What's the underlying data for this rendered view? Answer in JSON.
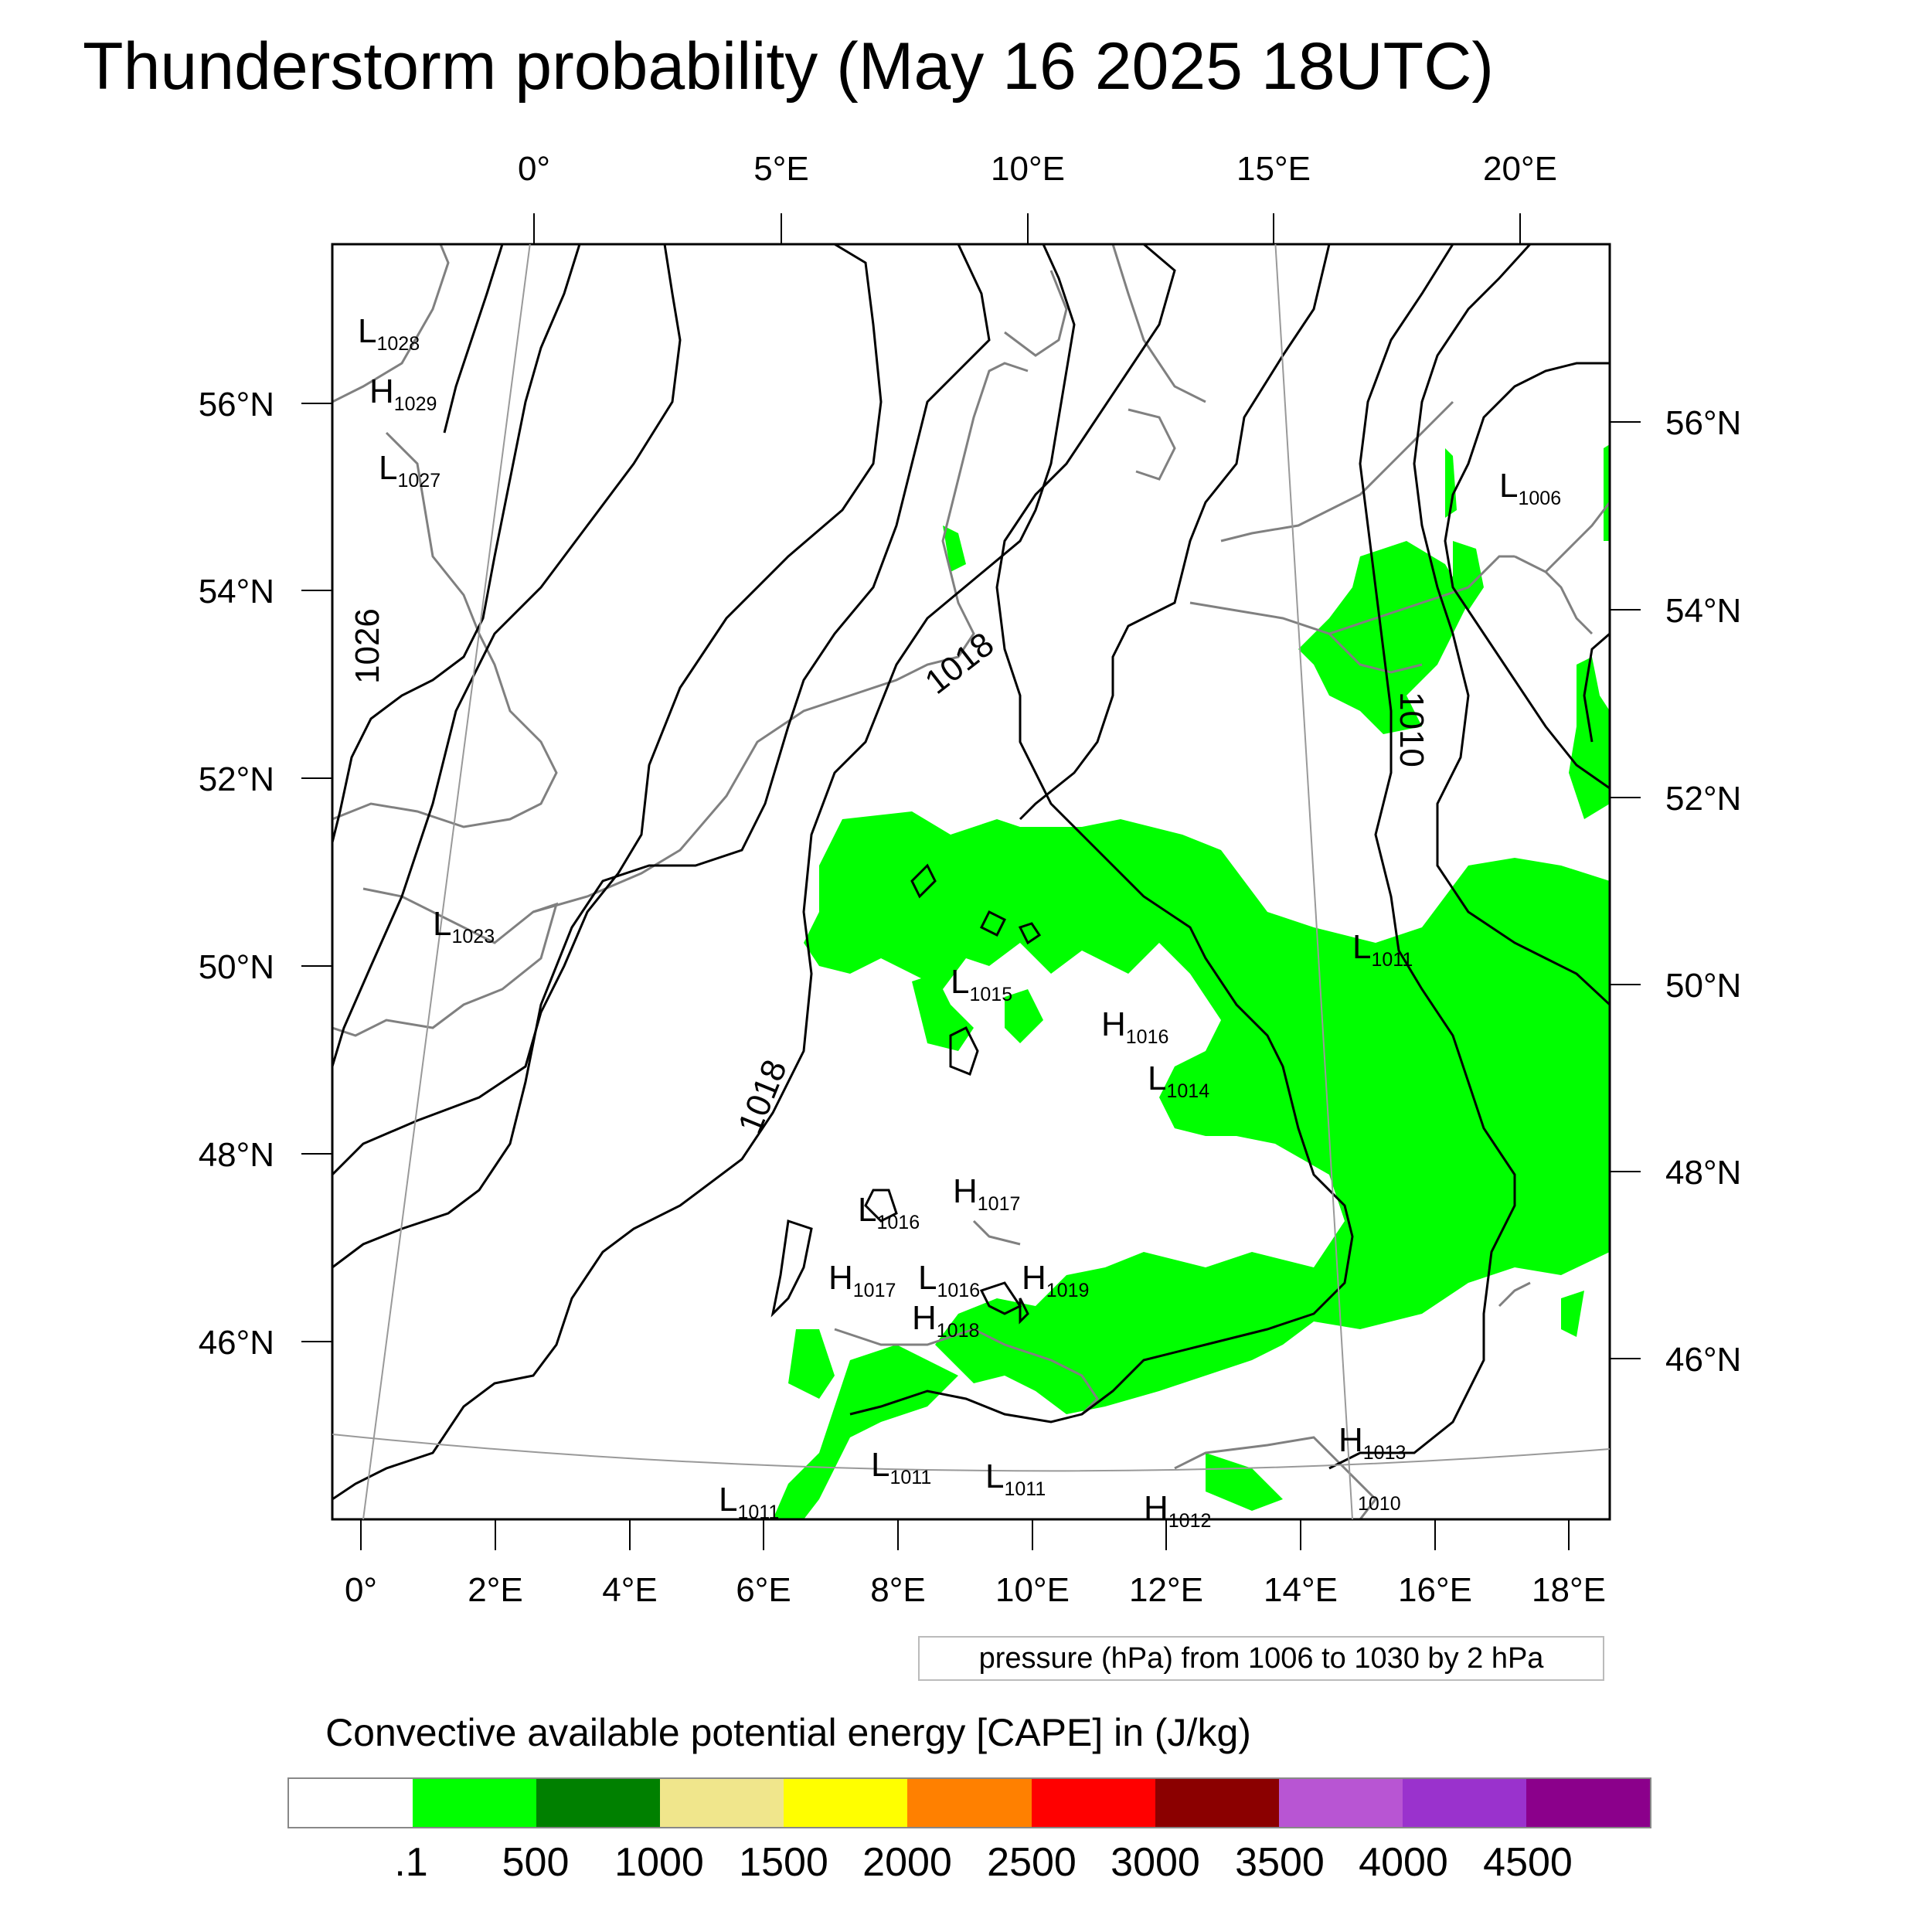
{
  "title": "Thunderstorm probability (May 16 2025 18UTC)",
  "top_lon_labels": [
    "0°",
    "5°E",
    "10°E",
    "15°E",
    "20°E"
  ],
  "left_lat_labels": [
    "56°N",
    "54°N",
    "52°N",
    "50°N",
    "48°N",
    "46°N"
  ],
  "right_lat_labels": [
    "56°N",
    "54°N",
    "52°N",
    "50°N",
    "48°N",
    "46°N"
  ],
  "bottom_lon_labels": [
    "0°",
    "2°E",
    "4°E",
    "6°E",
    "8°E",
    "10°E",
    "12°E",
    "14°E",
    "16°E",
    "18°E"
  ],
  "contour_labels": [
    {
      "id": "c1026",
      "text": "1026"
    },
    {
      "id": "c1018a",
      "text": "1018"
    },
    {
      "id": "c1018b",
      "text": "1018"
    },
    {
      "id": "c1010",
      "text": "1010"
    }
  ],
  "pressure_centers": [
    {
      "letter": "L",
      "value": "1028"
    },
    {
      "letter": "H",
      "value": "1029"
    },
    {
      "letter": "L",
      "value": "1027"
    },
    {
      "letter": "L",
      "value": "1023"
    },
    {
      "letter": "L",
      "value": "1006"
    },
    {
      "letter": "L",
      "value": "1015"
    },
    {
      "letter": "H",
      "value": "1016"
    },
    {
      "letter": "L",
      "value": "1014"
    },
    {
      "letter": "L",
      "value": "1011"
    },
    {
      "letter": "H",
      "value": "1017"
    },
    {
      "letter": "L",
      "value": "1016"
    },
    {
      "letter": "H",
      "value": "1017"
    },
    {
      "letter": "L",
      "value": "1016"
    },
    {
      "letter": "H",
      "value": "1019"
    },
    {
      "letter": "H",
      "value": "1018"
    },
    {
      "letter": "H",
      "value": "1013"
    },
    {
      "letter": "L",
      "value": "1011"
    },
    {
      "letter": "L",
      "value": "1011"
    },
    {
      "letter": "L",
      "value": "1011"
    },
    {
      "letter": "H",
      "value": "1012"
    },
    {
      "letter": "",
      "value": "1010"
    }
  ],
  "contour_note": "pressure (hPa) from 1006 to 1030 by 2 hPa",
  "colorbar": {
    "title": "Convective available potential energy [CAPE] in (J/kg)",
    "colors": [
      "#ffffff",
      "#00ff00",
      "#008000",
      "#f0e68c",
      "#ffff00",
      "#ff8000",
      "#ff0000",
      "#8b0000",
      "#b855d3",
      "#9a32cd",
      "#8b008b"
    ],
    "labels": [
      ".1",
      "500",
      "1000",
      "1500",
      "2000",
      "2500",
      "3000",
      "3500",
      "4000",
      "4500"
    ]
  },
  "map_colors": {
    "cape_green": "#00ff00",
    "coastline": "#808080",
    "isobar": "#000000"
  }
}
